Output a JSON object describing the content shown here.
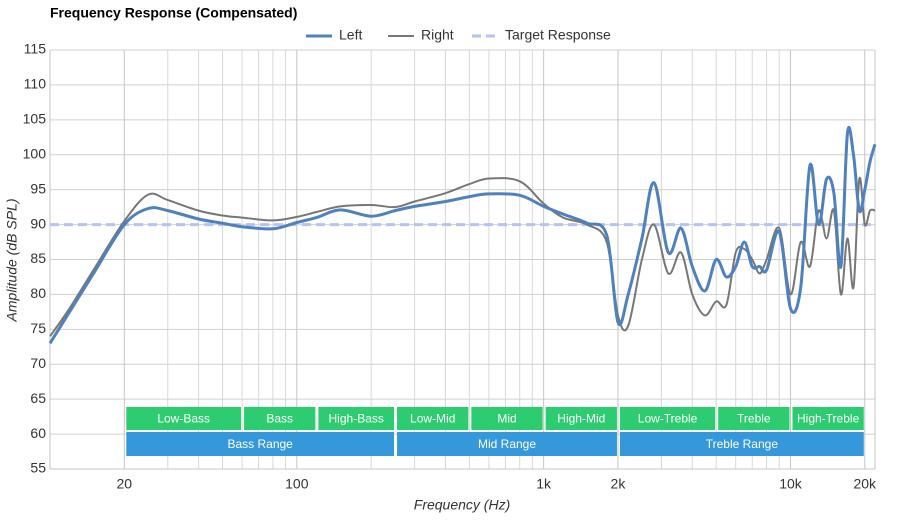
{
  "chart_data": {
    "type": "line",
    "title": "Frequency Response (Compensated)",
    "x_label": "Frequency (Hz)",
    "y_label": "Amplitude (dB SPL)",
    "log_x": true,
    "grid": true,
    "legend": "top",
    "xlim": [
      10,
      22000
    ],
    "ylim": [
      55,
      115
    ],
    "yticks": [
      55,
      60,
      65,
      70,
      75,
      80,
      85,
      90,
      95,
      100,
      105,
      110,
      115
    ],
    "xticks": [
      20,
      100,
      {
        "value": 1000,
        "label": "1k"
      },
      {
        "value": 2000,
        "label": "2k"
      },
      {
        "value": 10000,
        "label": "10k"
      },
      {
        "value": 20000,
        "label": "20k"
      }
    ],
    "xminor_ticks": [
      30,
      40,
      50,
      60,
      70,
      80,
      90,
      200,
      300,
      400,
      500,
      600,
      700,
      800,
      900,
      3000,
      4000,
      5000,
      6000,
      7000,
      8000,
      9000
    ],
    "x": [
      10,
      12,
      15,
      20,
      25,
      30,
      40,
      50,
      60,
      80,
      100,
      120,
      150,
      200,
      250,
      300,
      400,
      500,
      600,
      800,
      1000,
      1200,
      1500,
      1800,
      2000,
      2200,
      2500,
      2800,
      3200,
      3600,
      4000,
      4500,
      5000,
      5500,
      6000,
      6500,
      7000,
      7500,
      8000,
      9000,
      10000,
      11000,
      12000,
      13000,
      14000,
      15000,
      16000,
      17000,
      18000,
      19000,
      20000,
      21000,
      22000
    ],
    "series": [
      {
        "name": "Left",
        "color": "#4f81bd",
        "width": 3,
        "values": [
          73,
          77.5,
          83,
          90,
          92.3,
          92,
          90.8,
          90.2,
          89.7,
          89.4,
          90.3,
          91,
          92.1,
          91.2,
          92,
          92.6,
          93.3,
          94,
          94.4,
          94.2,
          92.6,
          91.5,
          90.2,
          88.5,
          76,
          80,
          88,
          96,
          86,
          89.5,
          84,
          80.5,
          85,
          82.5,
          84,
          87.5,
          84,
          84,
          83.5,
          89,
          78,
          81,
          98.5,
          90,
          96.5,
          94.5,
          84,
          103,
          100,
          92,
          95,
          99,
          101.5
        ]
      },
      {
        "name": "Right",
        "color": "#777777",
        "width": 2,
        "values": [
          74,
          78,
          83.5,
          90.5,
          94.3,
          93.5,
          92,
          91.3,
          91,
          90.6,
          91.1,
          91.8,
          92.6,
          92.8,
          92.5,
          93.3,
          94.5,
          95.8,
          96.6,
          96.2,
          93,
          91,
          90,
          87.5,
          77,
          75.5,
          85,
          90,
          83,
          86,
          80,
          77,
          79,
          78.5,
          86,
          86.5,
          85,
          83,
          85,
          89.5,
          80,
          87.5,
          84,
          92,
          88,
          92,
          80,
          88,
          81,
          96.5,
          90,
          92,
          92
        ]
      },
      {
        "name": "Target Response",
        "color": "#b3c3f5",
        "width": 3,
        "dashed": true,
        "values": [
          90,
          90,
          90,
          90,
          90,
          90,
          90,
          90,
          90,
          90,
          90,
          90,
          90,
          90,
          90,
          90,
          90,
          90,
          90,
          90,
          90,
          90,
          90,
          90,
          90,
          90,
          90,
          90,
          90,
          90,
          90,
          90,
          90,
          90,
          90,
          90,
          90,
          90,
          90,
          90,
          90,
          90,
          90,
          90,
          90,
          90,
          90,
          90,
          90,
          90,
          90,
          90,
          90
        ]
      }
    ],
    "band_color": "#2ecc71",
    "range_color": "#3498db",
    "bands": [
      {
        "label": "Low-Bass",
        "from": 20,
        "to": 60
      },
      {
        "label": "Bass",
        "from": 60,
        "to": 120
      },
      {
        "label": "High-Bass",
        "from": 120,
        "to": 250
      },
      {
        "label": "Low-Mid",
        "from": 250,
        "to": 500
      },
      {
        "label": "Mid",
        "from": 500,
        "to": 1000
      },
      {
        "label": "High-Mid",
        "from": 1000,
        "to": 2000
      },
      {
        "label": "Low-Treble",
        "from": 2000,
        "to": 5000
      },
      {
        "label": "Treble",
        "from": 5000,
        "to": 10000
      },
      {
        "label": "High-Treble",
        "from": 10000,
        "to": 20000
      }
    ],
    "ranges": [
      {
        "label": "Bass Range",
        "from": 20,
        "to": 250
      },
      {
        "label": "Mid Range",
        "from": 250,
        "to": 2000
      },
      {
        "label": "Treble Range",
        "from": 2000,
        "to": 20000
      }
    ]
  }
}
